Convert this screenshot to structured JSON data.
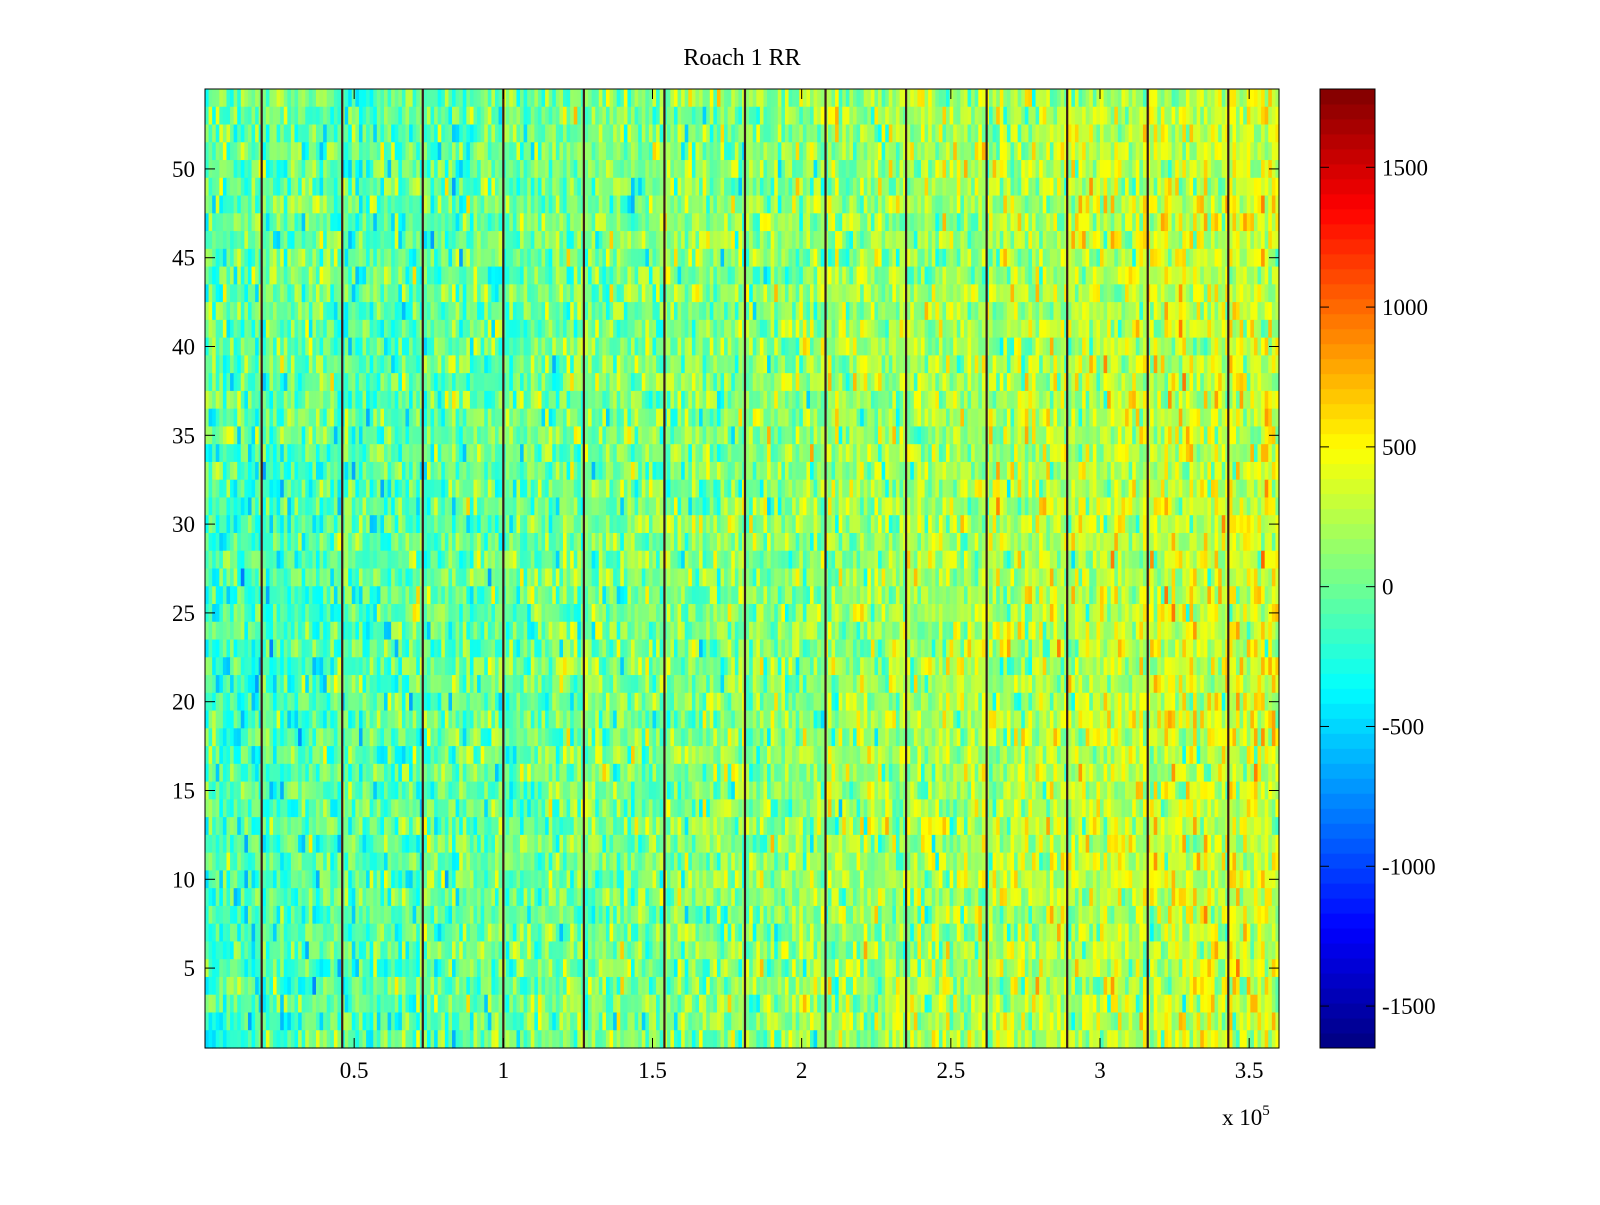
{
  "chart_data": {
    "type": "heatmap",
    "title": "Roach 1 RR",
    "xlabel": "",
    "ylabel": "",
    "x_range": [
      1,
      360000
    ],
    "y_range": [
      0.5,
      54.5
    ],
    "xlim": [
      0,
      3.6
    ],
    "ylim": [
      0.5,
      54.5
    ],
    "x_scale_label": "x 10",
    "x_scale_exponent": "5",
    "x_ticks": [
      0.5,
      1,
      1.5,
      2,
      2.5,
      3,
      3.5
    ],
    "x_tick_labels": [
      "0.5",
      "1",
      "1.5",
      "2",
      "2.5",
      "3",
      "3.5"
    ],
    "y_ticks": [
      5,
      10,
      15,
      20,
      25,
      30,
      35,
      40,
      45,
      50
    ],
    "y_tick_labels": [
      "5",
      "10",
      "15",
      "20",
      "25",
      "30",
      "35",
      "40",
      "45",
      "50"
    ],
    "rows": 54,
    "colorbar": {
      "colormap": "jet",
      "range": [
        -1650,
        1780
      ],
      "ticks": [
        -1500,
        -1000,
        -500,
        0,
        500,
        1000,
        1500
      ],
      "tick_labels": [
        "-1500",
        "-1000",
        "-500",
        "0",
        "500",
        "1000",
        "1500"
      ]
    },
    "value_trend": {
      "description_values": "mean value rises from about -150 on the left to about 350 on the right",
      "left_mean": -150,
      "right_mean": 350
    },
    "dark_vertical_lines_x": [
      0.19,
      0.46,
      0.73,
      1.0,
      1.27,
      1.54,
      1.81,
      2.08,
      2.35,
      2.62,
      2.89,
      3.16,
      3.43
    ],
    "grid": false
  }
}
